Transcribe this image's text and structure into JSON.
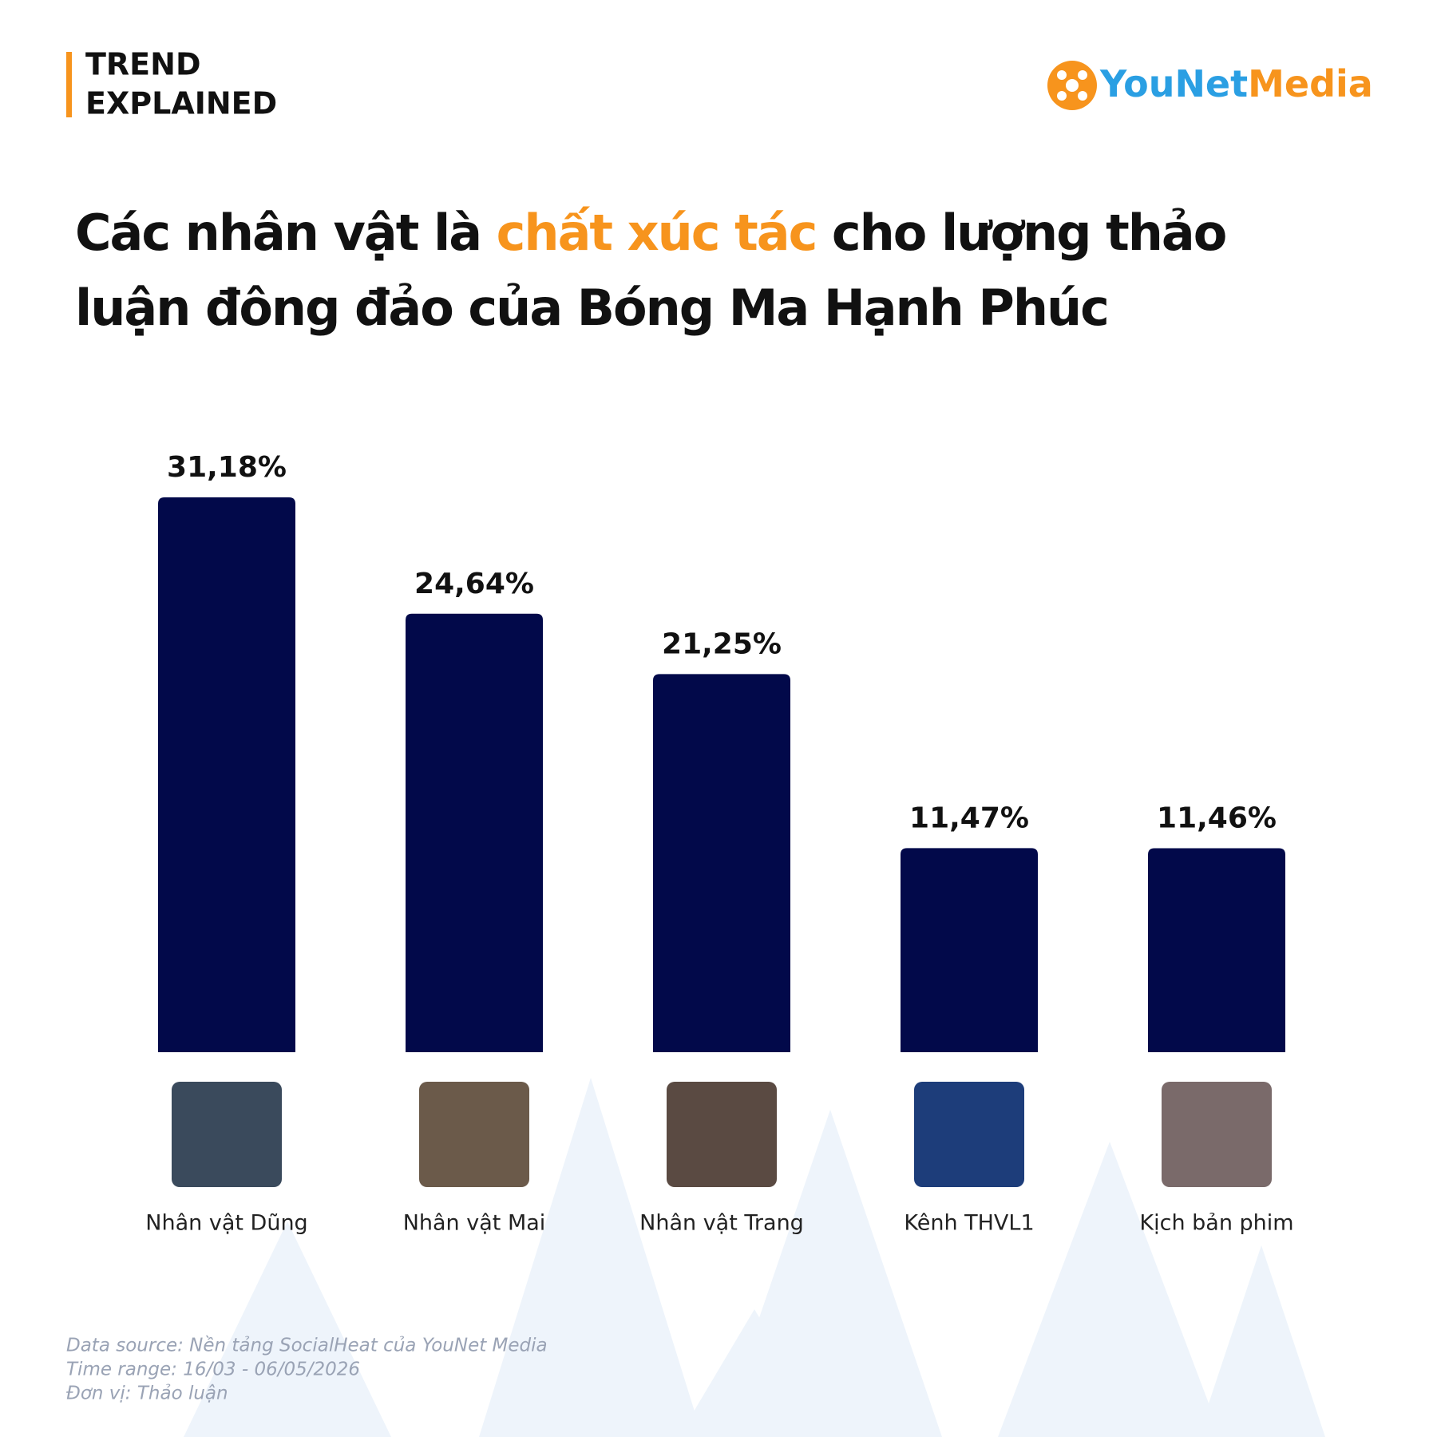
{
  "header": {
    "tag": [
      "TREND",
      "EXPLAINED"
    ],
    "logo": [
      "YouNet",
      "Media"
    ]
  },
  "chart_data": {
    "type": "bar",
    "title": [
      "Các nhân vật là ",
      "chất xúc tác",
      " cho lượng thảo luận đông đảo của Bóng Ma Hạnh Phúc"
    ],
    "categories": [
      "Nhân vật Dũng",
      "Nhân vật Mai",
      "Nhân vật Trang",
      "Kênh THVL1",
      "Kịch bản phim"
    ],
    "values": [
      31.18,
      24.64,
      21.25,
      11.47,
      11.46
    ],
    "value_labels": [
      "31,18%",
      "24,64%",
      "21,25%",
      "11,47%",
      "11,46%"
    ],
    "color": "#02094a"
  },
  "footer": [
    "Data source: Nền tảng SocialHeat của YouNet Media",
    "Time range: 16/03 - 06/05/2026",
    "Đơn vị: Thảo luận"
  ]
}
